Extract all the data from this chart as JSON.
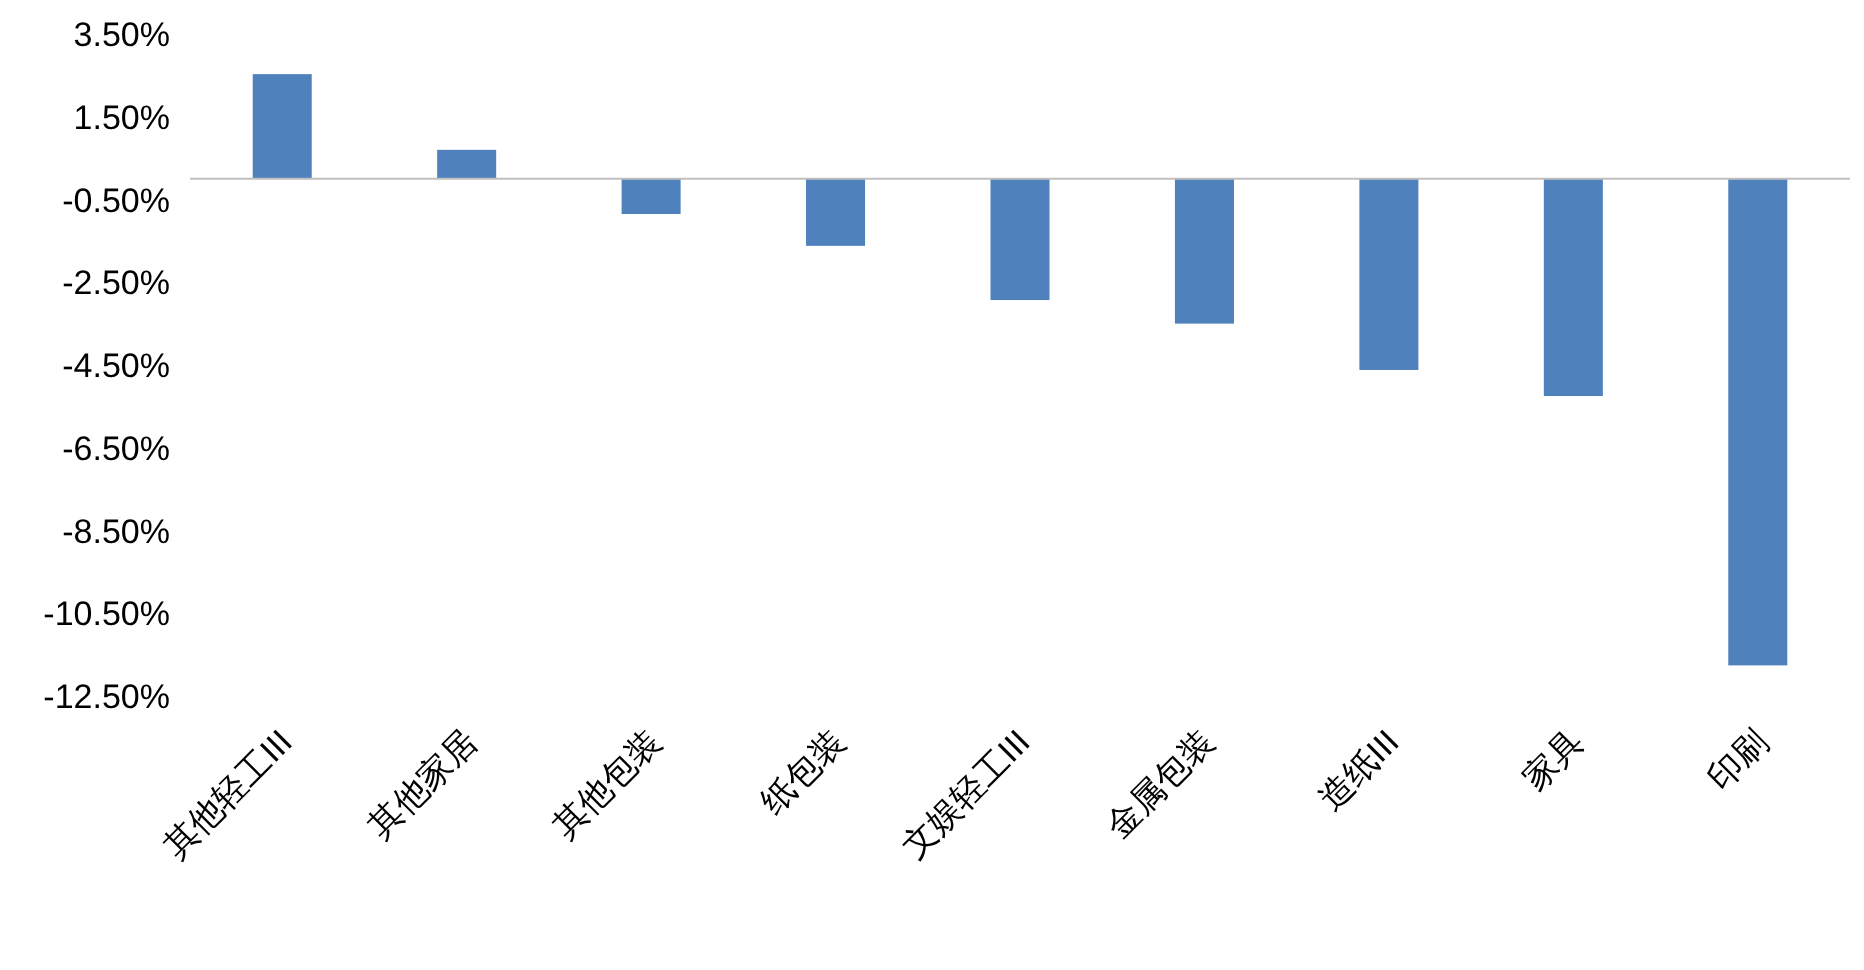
{
  "chart_data": {
    "type": "bar",
    "categories": [
      "其他轻工III",
      "其他家居",
      "其他包装",
      "纸包装",
      "文娱轻工III",
      "金属包装",
      "造纸III",
      "家具",
      "印刷"
    ],
    "values": [
      2.53,
      0.7,
      -0.85,
      -1.62,
      -2.93,
      -3.5,
      -4.62,
      -5.25,
      -11.76
    ],
    "color": "#4f81bd",
    "ylim": [
      -12.5,
      3.5
    ],
    "yticks": [
      {
        "value": 3.5,
        "label": "3.50%"
      },
      {
        "value": 1.5,
        "label": "1.50%"
      },
      {
        "value": -0.5,
        "label": "-0.50%"
      },
      {
        "value": -2.5,
        "label": "-2.50%"
      },
      {
        "value": -4.5,
        "label": "-4.50%"
      },
      {
        "value": -6.5,
        "label": "-6.50%"
      },
      {
        "value": -8.5,
        "label": "-8.50%"
      },
      {
        "value": -10.5,
        "label": "-10.50%"
      },
      {
        "value": -12.5,
        "label": "-12.50%"
      }
    ],
    "grid": false
  }
}
